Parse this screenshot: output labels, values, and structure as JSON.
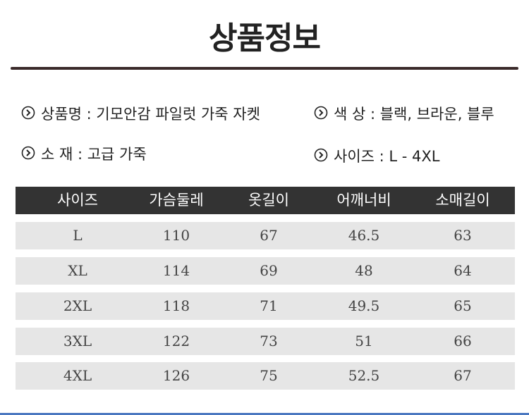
{
  "header": {
    "title": "상품정보"
  },
  "info": [
    {
      "text": "상품명 : 기모안감 파일럿 가죽 자켓"
    },
    {
      "text": "색 상 : 블랙, 브라운, 블루"
    },
    {
      "text": "소 재 : 고급 가죽"
    },
    {
      "text": "사이즈 : L - 4XL"
    }
  ],
  "table": {
    "columns": [
      "사이즈",
      "가슴둘레",
      "옷길이",
      "어깨너비",
      "소매길이"
    ],
    "rows": [
      [
        "L",
        "110",
        "67",
        "46.5",
        "63"
      ],
      [
        "XL",
        "114",
        "69",
        "48",
        "64"
      ],
      [
        "2XL",
        "118",
        "71",
        "49.5",
        "65"
      ],
      [
        "3XL",
        "122",
        "73",
        "51",
        "66"
      ],
      [
        "4XL",
        "126",
        "75",
        "52.5",
        "67"
      ]
    ]
  }
}
